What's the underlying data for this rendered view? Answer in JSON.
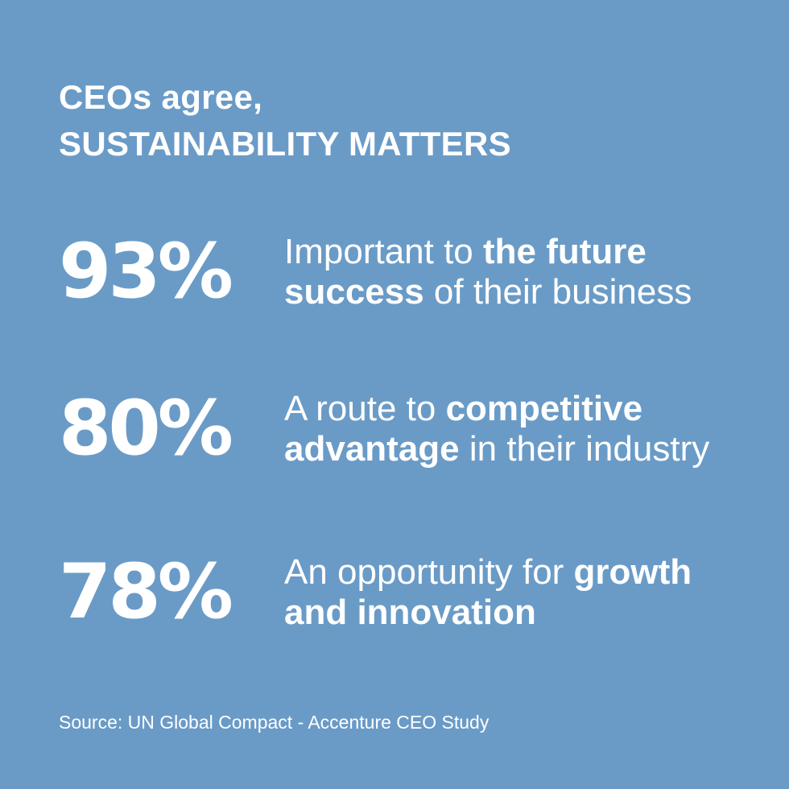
{
  "colors": {
    "background": "#6a9bc7",
    "text": "#ffffff"
  },
  "heading": {
    "line1": "CEOs agree,",
    "line2": "SUSTAINABILITY MATTERS"
  },
  "stats": [
    {
      "percent": "93%",
      "line1_pre": "Important to ",
      "line1_bold": "the future",
      "line2_bold": "success",
      "line2_post": " of their business"
    },
    {
      "percent": "80%",
      "line1_pre": "A route to ",
      "line1_bold": "competitive",
      "line2_bold": "advantage",
      "line2_post": " in their industry"
    },
    {
      "percent": "78%",
      "line1_pre": "An opportunity for ",
      "line1_bold": "growth",
      "line2_bold": "and innovation",
      "line2_post": ""
    }
  ],
  "source": "Source: UN Global Compact - Accenture CEO Study"
}
